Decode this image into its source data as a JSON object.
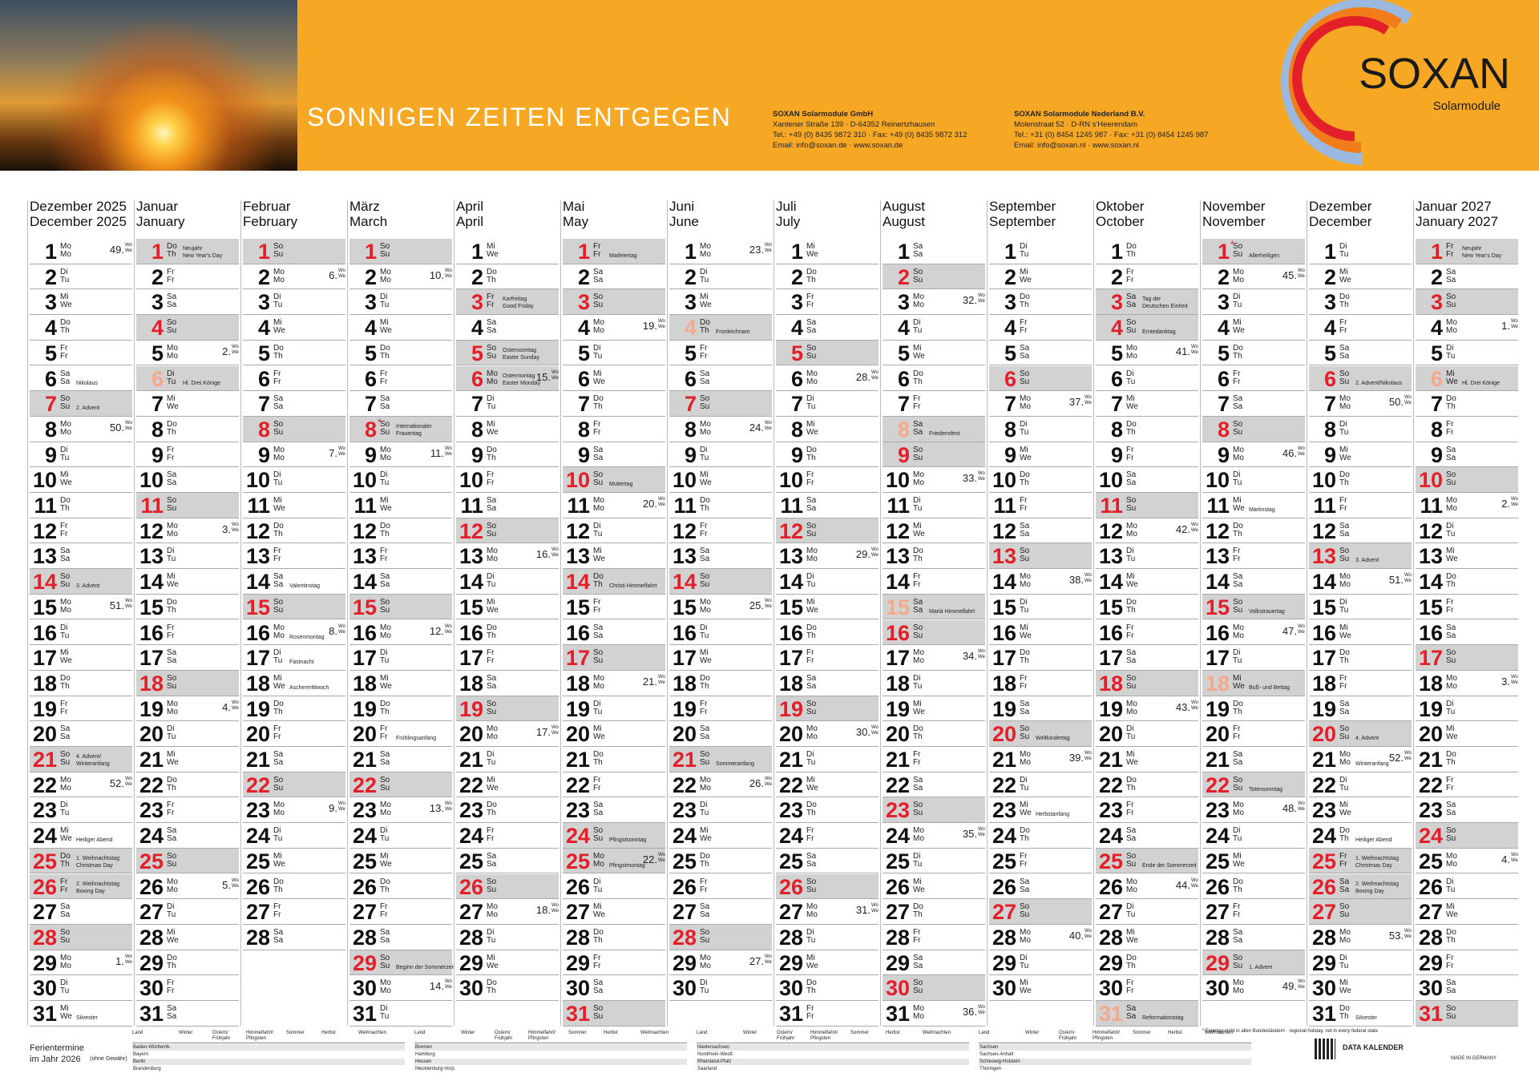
{
  "header": {
    "slogan": "SONNIGEN ZEITEN ENTGEGEN",
    "address_de": [
      "SOXAN Solarmodule GmbH",
      "Xantener Straße 139 · D-64352 Reinertzhausen",
      "Tel.: +49 (0) 8435 9872 310 · Fax: +49 (0) 8435 9872 312",
      "Email: info@soxan.de · www.soxan.de"
    ],
    "address_nl": [
      "SOXAN Solarmodule Nederland B.V.",
      "Molenstraat 52 · D-RN s'Heerendam",
      "Tel.: +31 (0) 8454 1245 987 · Fax: +31 (0) 8454 1245 987",
      "Email: info@soxan.nl · www.soxan.nl"
    ],
    "logo": "SOXAN",
    "logo_sub": "Solarmodule"
  },
  "weekdays": [
    {
      "de": "Mo",
      "en": "Mo"
    },
    {
      "de": "Di",
      "en": "Tu"
    },
    {
      "de": "Mi",
      "en": "We"
    },
    {
      "de": "Do",
      "en": "Th"
    },
    {
      "de": "Fr",
      "en": "Fr"
    },
    {
      "de": "Sa",
      "en": "Sa"
    },
    {
      "de": "So",
      "en": "Su",
      "shade": true
    }
  ],
  "week_label": {
    "de": "Wo",
    "en": "We"
  },
  "day_numbers": [
    1,
    2,
    3,
    4,
    5,
    6,
    7,
    8,
    9,
    10,
    11,
    12,
    13,
    14,
    15,
    16,
    17,
    18,
    19,
    20,
    21,
    22,
    23,
    24,
    25,
    26,
    27,
    28,
    29,
    30,
    31
  ],
  "months": [
    {
      "de": "Dezember 2025",
      "en": "December 2025",
      "w": [
        "Mo",
        "Di",
        "Mi",
        "Do",
        "Fr",
        "Sa",
        "So",
        "Mo",
        "Di",
        "Mi",
        "Do",
        "Fr",
        "Sa",
        "So",
        "Mo",
        "Di",
        "Mi",
        "Do",
        "Fr",
        "Sa",
        "So",
        "Mo",
        "Di",
        "Mi",
        "Do",
        "Fr",
        "Sa",
        "So",
        "Mo",
        "Di",
        "Mi"
      ],
      "weeks": {
        "1": "49.",
        "8": "50.",
        "15": "51.",
        "22": "52.",
        "29": "1."
      },
      "notes": {
        "6": {
          "lines": [
            "Nikolaus"
          ]
        },
        "7": {
          "lines": [
            "2. Advent"
          ]
        },
        "14": {
          "lines": [
            "3. Advent"
          ]
        },
        "21": {
          "lines": [
            "4. Advent/",
            "Winteranfang"
          ]
        },
        "24": {
          "lines": [
            "Heiliger Abend"
          ]
        },
        "25": {
          "lines": [
            "1. Weihnachtstag",
            "Christmas Day"
          ],
          "style": "holiday"
        },
        "26": {
          "lines": [
            "2. Weihnachtstag",
            "Boxing Day"
          ],
          "style": "holiday"
        },
        "31": {
          "lines": [
            "Silvester"
          ]
        }
      }
    },
    {
      "de": "Januar",
      "en": "January",
      "w": [
        "Do",
        "Fr",
        "Sa",
        "So",
        "Mo",
        "Di",
        "Mi",
        "Do",
        "Fr",
        "Sa",
        "So",
        "Mo",
        "Di",
        "Mi",
        "Do",
        "Fr",
        "Sa",
        "So",
        "Mo",
        "Di",
        "Mi",
        "Do",
        "Fr",
        "Sa",
        "So",
        "Mo",
        "Di",
        "Mi",
        "Do",
        "Fr",
        "Sa"
      ],
      "weeks": {
        "5": "2.",
        "12": "3.",
        "19": "4.",
        "26": "5."
      },
      "notes": {
        "1": {
          "lines": [
            "Neujahr",
            "New Year's Day"
          ],
          "style": "holiday"
        },
        "6": {
          "lines": [
            "Hl. Drei Könige"
          ],
          "style": "regional"
        }
      }
    },
    {
      "de": "Februar",
      "en": "February",
      "w": [
        "So",
        "Mo",
        "Di",
        "Mi",
        "Do",
        "Fr",
        "Sa",
        "So",
        "Mo",
        "Di",
        "Mi",
        "Do",
        "Fr",
        "Sa",
        "So",
        "Mo",
        "Di",
        "Mi",
        "Do",
        "Fr",
        "Sa",
        "So",
        "Mo",
        "Di",
        "Mi",
        "Do",
        "Fr",
        "Sa"
      ],
      "weeks": {
        "2": "6.",
        "9": "7.",
        "16": "8.",
        "23": "9."
      },
      "notes": {
        "14": {
          "lines": [
            "Valentinstag"
          ]
        },
        "16": {
          "lines": [
            "Rosenmontag"
          ]
        },
        "17": {
          "lines": [
            "Fastnacht"
          ]
        },
        "18": {
          "lines": [
            "Aschermittwoch"
          ]
        }
      }
    },
    {
      "de": "März",
      "en": "March",
      "w": [
        "So",
        "Mo",
        "Di",
        "Mi",
        "Do",
        "Fr",
        "Sa",
        "So",
        "Mo",
        "Di",
        "Mi",
        "Do",
        "Fr",
        "Sa",
        "So",
        "Mo",
        "Di",
        "Mi",
        "Do",
        "Fr",
        "Sa",
        "So",
        "Mo",
        "Di",
        "Mi",
        "Do",
        "Fr",
        "Sa",
        "So",
        "Mo",
        "Di"
      ],
      "weeks": {
        "2": "10.",
        "9": "11.",
        "16": "12.",
        "23": "13.",
        "30": "14."
      },
      "notes": {
        "8": {
          "lines": [
            "Internationaler",
            "Frauentag"
          ],
          "mark": "*"
        },
        "20": {
          "lines": [
            "Frühlingsanfang"
          ]
        },
        "29": {
          "lines": [
            "Beginn der Sommerzeit"
          ]
        }
      }
    },
    {
      "de": "April",
      "en": "April",
      "w": [
        "Mi",
        "Do",
        "Fr",
        "Sa",
        "So",
        "Mo",
        "Di",
        "Mi",
        "Do",
        "Fr",
        "Sa",
        "So",
        "Mo",
        "Di",
        "Mi",
        "Do",
        "Fr",
        "Sa",
        "So",
        "Mo",
        "Di",
        "Mi",
        "Do",
        "Fr",
        "Sa",
        "So",
        "Mo",
        "Di",
        "Mi",
        "Do"
      ],
      "weeks": {
        "6": "15.",
        "13": "16.",
        "20": "17.",
        "27": "18."
      },
      "notes": {
        "3": {
          "lines": [
            "Karfreitag",
            "Good Friday"
          ],
          "style": "holiday"
        },
        "5": {
          "lines": [
            "Ostersonntag",
            "Easter Sunday"
          ]
        },
        "6": {
          "lines": [
            "Ostermontag",
            "Easter Monday"
          ],
          "style": "holiday"
        }
      }
    },
    {
      "de": "Mai",
      "en": "May",
      "w": [
        "Fr",
        "Sa",
        "So",
        "Mo",
        "Di",
        "Mi",
        "Do",
        "Fr",
        "Sa",
        "So",
        "Mo",
        "Di",
        "Mi",
        "Do",
        "Fr",
        "Sa",
        "So",
        "Mo",
        "Di",
        "Mi",
        "Do",
        "Fr",
        "Sa",
        "So",
        "Mo",
        "Di",
        "Mi",
        "Do",
        "Fr",
        "Sa",
        "So"
      ],
      "weeks": {
        "4": "19.",
        "11": "20.",
        "18": "21.",
        "25": "22."
      },
      "notes": {
        "1": {
          "lines": [
            "Maifeiertag"
          ],
          "style": "holiday"
        },
        "10": {
          "lines": [
            "Muttertag"
          ]
        },
        "14": {
          "lines": [
            "Christi Himmelfahrt"
          ],
          "style": "holiday"
        },
        "24": {
          "lines": [
            "Pfingstsonntag"
          ]
        },
        "25": {
          "lines": [
            "Pfingstmontag"
          ],
          "style": "holiday"
        }
      }
    },
    {
      "de": "Juni",
      "en": "June",
      "w": [
        "Mo",
        "Di",
        "Mi",
        "Do",
        "Fr",
        "Sa",
        "So",
        "Mo",
        "Di",
        "Mi",
        "Do",
        "Fr",
        "Sa",
        "So",
        "Mo",
        "Di",
        "Mi",
        "Do",
        "Fr",
        "Sa",
        "So",
        "Mo",
        "Di",
        "Mi",
        "Do",
        "Fr",
        "Sa",
        "So",
        "Mo",
        "Di"
      ],
      "weeks": {
        "1": "23.",
        "8": "24.",
        "15": "25.",
        "22": "26.",
        "29": "27."
      },
      "notes": {
        "4": {
          "lines": [
            "Fronleichnam"
          ],
          "style": "regional"
        },
        "21": {
          "lines": [
            "Sommeranfang"
          ]
        }
      }
    },
    {
      "de": "Juli",
      "en": "July",
      "w": [
        "Mi",
        "Do",
        "Fr",
        "Sa",
        "So",
        "Mo",
        "Di",
        "Mi",
        "Do",
        "Fr",
        "Sa",
        "So",
        "Mo",
        "Di",
        "Mi",
        "Do",
        "Fr",
        "Sa",
        "So",
        "Mo",
        "Di",
        "Mi",
        "Do",
        "Fr",
        "Sa",
        "So",
        "Mo",
        "Di",
        "Mi",
        "Do",
        "Fr"
      ],
      "weeks": {
        "6": "28.",
        "13": "29.",
        "20": "30.",
        "27": "31."
      },
      "notes": {}
    },
    {
      "de": "August",
      "en": "August",
      "w": [
        "Sa",
        "So",
        "Mo",
        "Di",
        "Mi",
        "Do",
        "Fr",
        "Sa",
        "So",
        "Mo",
        "Di",
        "Mi",
        "Do",
        "Fr",
        "Sa",
        "So",
        "Mo",
        "Di",
        "Mi",
        "Do",
        "Fr",
        "Sa",
        "So",
        "Mo",
        "Di",
        "Mi",
        "Do",
        "Fr",
        "Sa",
        "So",
        "Mo"
      ],
      "weeks": {
        "3": "32.",
        "10": "33.",
        "17": "34.",
        "24": "35.",
        "31": "36."
      },
      "notes": {
        "8": {
          "lines": [
            "Friedensfest"
          ],
          "style": "regional"
        },
        "15": {
          "lines": [
            "Mariä Himmelfahrt"
          ],
          "style": "regional"
        }
      }
    },
    {
      "de": "September",
      "en": "September",
      "w": [
        "Di",
        "Mi",
        "Do",
        "Fr",
        "Sa",
        "So",
        "Mo",
        "Di",
        "Mi",
        "Do",
        "Fr",
        "Sa",
        "So",
        "Mo",
        "Di",
        "Mi",
        "Do",
        "Fr",
        "Sa",
        "So",
        "Mo",
        "Di",
        "Mi",
        "Do",
        "Fr",
        "Sa",
        "So",
        "Mo",
        "Di",
        "Mi"
      ],
      "weeks": {
        "7": "37.",
        "14": "38.",
        "21": "39.",
        "28": "40."
      },
      "notes": {
        "20": {
          "lines": [
            "Weltkindertag"
          ]
        },
        "23": {
          "lines": [
            "Herbstanfang"
          ]
        }
      }
    },
    {
      "de": "Oktober",
      "en": "October",
      "w": [
        "Do",
        "Fr",
        "Sa",
        "So",
        "Mo",
        "Di",
        "Mi",
        "Do",
        "Fr",
        "Sa",
        "So",
        "Mo",
        "Di",
        "Mi",
        "Do",
        "Fr",
        "Sa",
        "So",
        "Mo",
        "Di",
        "Mi",
        "Do",
        "Fr",
        "Sa",
        "So",
        "Mo",
        "Di",
        "Mi",
        "Do",
        "Fr",
        "Sa"
      ],
      "weeks": {
        "5": "41.",
        "12": "42.",
        "19": "43.",
        "26": "44."
      },
      "notes": {
        "3": {
          "lines": [
            "Tag der",
            "Deutschen Einheit"
          ],
          "style": "holiday"
        },
        "4": {
          "lines": [
            "Erntedanktag"
          ]
        },
        "25": {
          "lines": [
            "Ende der Sommerzeit"
          ]
        },
        "31": {
          "lines": [
            "Reformationstag"
          ],
          "style": "regional"
        }
      }
    },
    {
      "de": "November",
      "en": "November",
      "w": [
        "So",
        "Mo",
        "Di",
        "Mi",
        "Do",
        "Fr",
        "Sa",
        "So",
        "Mo",
        "Di",
        "Mi",
        "Do",
        "Fr",
        "Sa",
        "So",
        "Mo",
        "Di",
        "Mi",
        "Do",
        "Fr",
        "Sa",
        "So",
        "Mo",
        "Di",
        "Mi",
        "Do",
        "Fr",
        "Sa",
        "So",
        "Mo"
      ],
      "weeks": {
        "2": "45.",
        "9": "46.",
        "16": "47.",
        "23": "48.",
        "30": "49."
      },
      "notes": {
        "1": {
          "lines": [
            "Allerheiligen"
          ],
          "mark": "*"
        },
        "11": {
          "lines": [
            "Martinstag"
          ]
        },
        "15": {
          "lines": [
            "Volkstrauertag"
          ]
        },
        "18": {
          "lines": [
            "Buß- und Bettag"
          ],
          "style": "regional"
        },
        "22": {
          "lines": [
            "Totensonntag"
          ]
        },
        "29": {
          "lines": [
            "1. Advent"
          ]
        }
      }
    },
    {
      "de": "Dezember",
      "en": "December",
      "w": [
        "Di",
        "Mi",
        "Do",
        "Fr",
        "Sa",
        "So",
        "Mo",
        "Di",
        "Mi",
        "Do",
        "Fr",
        "Sa",
        "So",
        "Mo",
        "Di",
        "Mi",
        "Do",
        "Fr",
        "Sa",
        "So",
        "Mo",
        "Di",
        "Mi",
        "Do",
        "Fr",
        "Sa",
        "So",
        "Mo",
        "Di",
        "Mi",
        "Do"
      ],
      "weeks": {
        "7": "50.",
        "14": "51.",
        "21": "52.",
        "28": "53."
      },
      "notes": {
        "6": {
          "lines": [
            "2. Advent/Nikolaus"
          ]
        },
        "13": {
          "lines": [
            "3. Advent"
          ]
        },
        "20": {
          "lines": [
            "4. Advent"
          ]
        },
        "21": {
          "lines": [
            "Winteranfang"
          ]
        },
        "24": {
          "lines": [
            "Heiliger Abend"
          ]
        },
        "25": {
          "lines": [
            "1. Weihnachtstag",
            "Christmas Day"
          ],
          "style": "holiday"
        },
        "26": {
          "lines": [
            "2. Weihnachtstag",
            "Boxing Day"
          ],
          "style": "holiday"
        },
        "31": {
          "lines": [
            "Silvester"
          ]
        }
      }
    },
    {
      "de": "Januar 2027",
      "en": "January 2027",
      "w": [
        "Fr",
        "Sa",
        "So",
        "Mo",
        "Di",
        "Mi",
        "Do",
        "Fr",
        "Sa",
        "So",
        "Mo",
        "Di",
        "Mi",
        "Do",
        "Fr",
        "Sa",
        "So",
        "Mo",
        "Di",
        "Mi",
        "Do",
        "Fr",
        "Sa",
        "So",
        "Mo",
        "Di",
        "Mi",
        "Do",
        "Fr",
        "Sa",
        "So"
      ],
      "weeks": {
        "4": "1.",
        "11": "2.",
        "18": "3.",
        "25": "4."
      },
      "notes": {
        "1": {
          "lines": [
            "Neujahr",
            "New Year's Day"
          ],
          "style": "holiday"
        },
        "6": {
          "lines": [
            "Hl. Drei Könige"
          ],
          "style": "regional"
        }
      }
    }
  ],
  "footer": {
    "title": "Ferientermine",
    "subtitle": "im Jahr 2026",
    "note": "(ohne Gewähr)",
    "headers": [
      "Land",
      "Winter",
      "Ostern/ Frühjahr",
      "Himmelfahrt/ Pfingsten",
      "Sommer",
      "Herbst",
      "Weihnachten"
    ],
    "groups": [
      [
        "Baden-Württemb.",
        "Bayern",
        "Berlin",
        "Brandenburg"
      ],
      [
        "Bremen",
        "Hamburg",
        "Hessen",
        "Mecklenburg-Vorp."
      ],
      [
        "Niedersachsen",
        "Nordrhein-Westf.",
        "Rheinland-Pfalz",
        "Saarland"
      ],
      [
        "Sachsen",
        "Sachsen-Anhalt",
        "Schleswig-Holstein",
        "Thüringen"
      ]
    ],
    "footnote": "* Feiertag nicht in allen Bundesländern · regional holiday, not in every federal state",
    "brand": "DATA KALENDER",
    "made": "MADE IN GERMANY"
  }
}
